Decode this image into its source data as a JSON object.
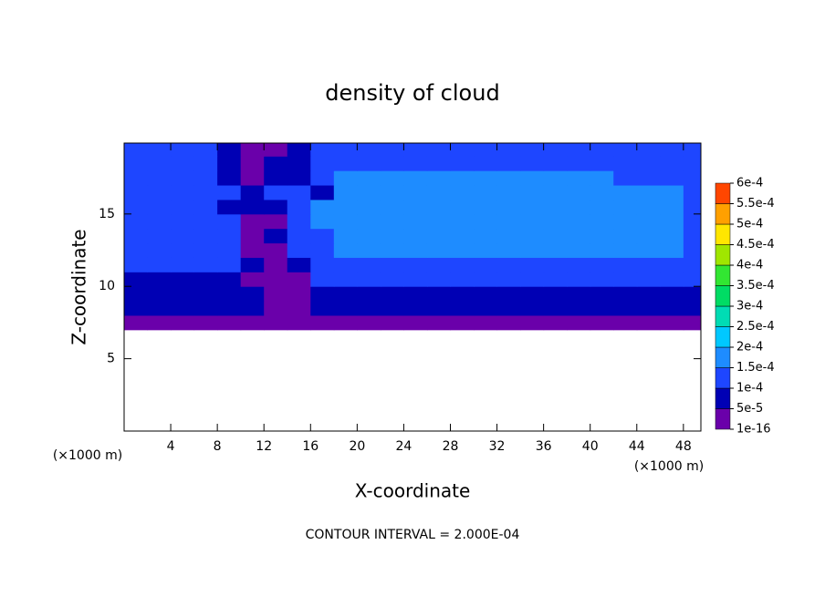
{
  "chart_data": {
    "type": "heatmap",
    "title": "density of cloud",
    "x_label": "X-coordinate",
    "y_label": "Z-coordinate",
    "x_unit_label": "(×1000 m)",
    "y_unit_label": "(×1000 m)",
    "footnote": "CONTOUR INTERVAL = 2.000E-04",
    "xlim": [
      0,
      49.5
    ],
    "ylim": [
      0,
      19.9
    ],
    "xticks": [
      4,
      8,
      12,
      16,
      20,
      24,
      28,
      32,
      36,
      40,
      44,
      48
    ],
    "yticks": [
      5,
      10,
      15
    ],
    "x": [
      1,
      3,
      5,
      7,
      9,
      11,
      13,
      15,
      17,
      19,
      21,
      23,
      25,
      27,
      29,
      31,
      33,
      35,
      37,
      39,
      41,
      43,
      45,
      47,
      49
    ],
    "y": [
      7.5,
      8.5,
      9.5,
      10.5,
      11.5,
      12.5,
      13.5,
      14.5,
      15.5,
      16.5,
      17.5,
      18.5,
      19.5
    ],
    "z": [
      [
        3e-05,
        3e-05,
        3e-05,
        3e-05,
        3e-05,
        3e-05,
        3e-05,
        3e-05,
        3e-05,
        3e-05,
        3e-05,
        3e-05,
        3e-05,
        3e-05,
        3e-05,
        3e-05,
        3e-05,
        3e-05,
        3e-05,
        3e-05,
        3e-05,
        3e-05,
        3e-05,
        3e-05,
        3e-05
      ],
      [
        8e-05,
        8e-05,
        8e-05,
        8e-05,
        8e-05,
        8e-05,
        3e-05,
        3e-05,
        8e-05,
        8e-05,
        8e-05,
        8e-05,
        8e-05,
        8e-05,
        8e-05,
        8e-05,
        8e-05,
        8e-05,
        8e-05,
        8e-05,
        8e-05,
        8e-05,
        8e-05,
        8e-05,
        8e-05
      ],
      [
        8e-05,
        8e-05,
        8e-05,
        8e-05,
        8e-05,
        8e-05,
        3e-05,
        3e-05,
        8e-05,
        8e-05,
        8e-05,
        8e-05,
        8e-05,
        8e-05,
        8e-05,
        8e-05,
        8e-05,
        8e-05,
        8e-05,
        8e-05,
        8e-05,
        8e-05,
        8e-05,
        8e-05,
        8e-05
      ],
      [
        8e-05,
        8e-05,
        8e-05,
        8e-05,
        8e-05,
        3e-05,
        3e-05,
        3e-05,
        0.00012,
        0.00012,
        0.00012,
        0.00012,
        0.00012,
        0.00012,
        0.00012,
        0.00012,
        0.00012,
        0.00012,
        0.00012,
        0.00012,
        0.00012,
        0.00012,
        0.00012,
        0.00012,
        0.00012
      ],
      [
        0.00012,
        0.00012,
        0.00012,
        0.00012,
        0.00012,
        8e-05,
        3e-05,
        8e-05,
        0.00012,
        0.00012,
        0.00012,
        0.00012,
        0.00012,
        0.00012,
        0.00012,
        0.00012,
        0.00012,
        0.00012,
        0.00012,
        0.00012,
        0.00012,
        0.00012,
        0.00012,
        0.00012,
        0.00012
      ],
      [
        0.00012,
        0.00012,
        0.00012,
        0.00012,
        0.00012,
        3e-05,
        3e-05,
        0.00012,
        0.00012,
        0.00017,
        0.00017,
        0.00017,
        0.00017,
        0.00017,
        0.00017,
        0.00017,
        0.00017,
        0.00017,
        0.00017,
        0.00017,
        0.00017,
        0.00017,
        0.00017,
        0.00017,
        0.00012
      ],
      [
        0.00012,
        0.00012,
        0.00012,
        0.00012,
        0.00012,
        3e-05,
        8e-05,
        0.00012,
        0.00012,
        0.00017,
        0.00017,
        0.00017,
        0.00017,
        0.00017,
        0.00017,
        0.00017,
        0.00017,
        0.00017,
        0.00017,
        0.00017,
        0.00017,
        0.00017,
        0.00017,
        0.00017,
        0.00012
      ],
      [
        0.00012,
        0.00012,
        0.00012,
        0.00012,
        0.00012,
        3e-05,
        3e-05,
        0.00012,
        0.00017,
        0.00017,
        0.00017,
        0.00017,
        0.00017,
        0.00017,
        0.00017,
        0.00017,
        0.00017,
        0.00017,
        0.00017,
        0.00017,
        0.00017,
        0.00017,
        0.00017,
        0.00017,
        0.00012
      ],
      [
        0.00012,
        0.00012,
        0.00012,
        0.00012,
        8e-05,
        8e-05,
        8e-05,
        0.00012,
        0.00017,
        0.00017,
        0.00017,
        0.00017,
        0.00017,
        0.00017,
        0.00017,
        0.00017,
        0.00017,
        0.00017,
        0.00017,
        0.00017,
        0.00017,
        0.00017,
        0.00017,
        0.00017,
        0.00012
      ],
      [
        0.00012,
        0.00012,
        0.00012,
        0.00012,
        0.00012,
        8e-05,
        0.00012,
        0.00012,
        8e-05,
        0.00017,
        0.00017,
        0.00017,
        0.00017,
        0.00017,
        0.00017,
        0.00017,
        0.00017,
        0.00017,
        0.00017,
        0.00017,
        0.00017,
        0.00017,
        0.00017,
        0.00017,
        0.00012
      ],
      [
        0.00012,
        0.00012,
        0.00012,
        0.00012,
        8e-05,
        3e-05,
        8e-05,
        8e-05,
        0.00012,
        0.00017,
        0.00017,
        0.00017,
        0.00017,
        0.00017,
        0.00017,
        0.00017,
        0.00017,
        0.00017,
        0.00017,
        0.00017,
        0.00017,
        0.00012,
        0.00012,
        0.00012,
        0.00012
      ],
      [
        0.00012,
        0.00012,
        0.00012,
        0.00012,
        8e-05,
        3e-05,
        8e-05,
        8e-05,
        0.00012,
        0.00012,
        0.00012,
        0.00012,
        0.00012,
        0.00012,
        0.00012,
        0.00012,
        0.00012,
        0.00012,
        0.00012,
        0.00012,
        0.00012,
        0.00012,
        0.00012,
        0.00012,
        0.00012
      ],
      [
        0.00012,
        0.00012,
        0.00012,
        0.00012,
        8e-05,
        3e-05,
        3e-05,
        8e-05,
        0.00012,
        0.00012,
        0.00012,
        0.00012,
        0.00012,
        0.00012,
        0.00012,
        0.00012,
        0.00012,
        0.00012,
        0.00012,
        0.00012,
        0.00012,
        0.00012,
        0.00012,
        0.00012,
        0.00012
      ]
    ],
    "colorbar": {
      "ticks": [
        {
          "value": 1e-16,
          "label": "1e-16"
        },
        {
          "value": 5e-05,
          "label": "5e-5"
        },
        {
          "value": 0.0001,
          "label": "1e-4"
        },
        {
          "value": 0.00015,
          "label": "1.5e-4"
        },
        {
          "value": 0.0002,
          "label": "2e-4"
        },
        {
          "value": 0.00025,
          "label": "2.5e-4"
        },
        {
          "value": 0.0003,
          "label": "3e-4"
        },
        {
          "value": 0.00035,
          "label": "3.5e-4"
        },
        {
          "value": 0.0004,
          "label": "4e-4"
        },
        {
          "value": 0.00045,
          "label": "4.5e-4"
        },
        {
          "value": 0.0005,
          "label": "5e-4"
        },
        {
          "value": 0.00055,
          "label": "5.5e-4"
        },
        {
          "value": 0.0006,
          "label": "6e-4"
        }
      ],
      "colors": [
        "#6a00aa",
        "#0000b4",
        "#1e46ff",
        "#1e8cff",
        "#00c8ff",
        "#00dcb4",
        "#00dc64",
        "#32e632",
        "#a0e600",
        "#ffe600",
        "#ffa000",
        "#ff4600",
        "#ff8c8c"
      ]
    }
  }
}
